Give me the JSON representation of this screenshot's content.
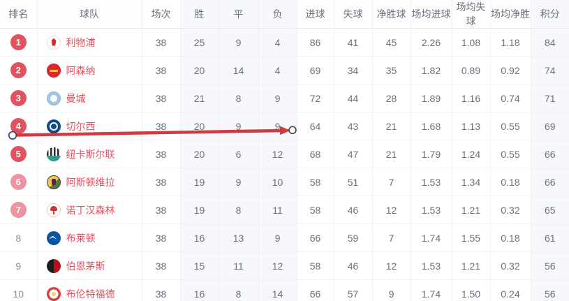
{
  "accent": {
    "badge_red": "#e4525f",
    "badge_pink": "#ee93a0",
    "team_text_red": "#e5505e"
  },
  "annotation": {
    "type": "arrow",
    "color": "#d23a41",
    "handle_border": "#2c4270",
    "description": "red arrow with drag handles drawn across row 4 (切尔西)"
  },
  "table": {
    "columns": [
      {
        "key": "rank",
        "label": "排名"
      },
      {
        "key": "team",
        "label": "球队"
      },
      {
        "key": "played",
        "label": "场次"
      },
      {
        "key": "win",
        "label": "胜"
      },
      {
        "key": "draw",
        "label": "平"
      },
      {
        "key": "loss",
        "label": "负"
      },
      {
        "key": "gf",
        "label": "进球"
      },
      {
        "key": "ga",
        "label": "失球"
      },
      {
        "key": "gd",
        "label": "净胜球"
      },
      {
        "key": "avg_gf",
        "label": "场均进球"
      },
      {
        "key": "avg_ga",
        "label": "场均失球"
      },
      {
        "key": "avg_gd",
        "label": "场均净胜"
      },
      {
        "key": "points",
        "label": "积分"
      }
    ],
    "rows": [
      {
        "rank": "1",
        "badge": "solid",
        "team": "利物浦",
        "logo_icon": "liverpool-logo-icon",
        "stats": [
          "38",
          "25",
          "9",
          "4",
          "86",
          "41",
          "45",
          "2.26",
          "1.08",
          "1.18",
          "84"
        ]
      },
      {
        "rank": "2",
        "badge": "solid",
        "team": "阿森纳",
        "logo_icon": "arsenal-logo-icon",
        "stats": [
          "38",
          "20",
          "14",
          "4",
          "69",
          "34",
          "35",
          "1.82",
          "0.89",
          "0.92",
          "74"
        ]
      },
      {
        "rank": "3",
        "badge": "solid",
        "team": "曼城",
        "logo_icon": "mancity-logo-icon",
        "stats": [
          "38",
          "21",
          "8",
          "9",
          "72",
          "44",
          "28",
          "1.89",
          "1.16",
          "0.74",
          "71"
        ]
      },
      {
        "rank": "4",
        "badge": "solid",
        "team": "切尔西",
        "logo_icon": "chelsea-logo-icon",
        "stats": [
          "38",
          "20",
          "9",
          "9",
          "64",
          "43",
          "21",
          "1.68",
          "1.13",
          "0.55",
          "69"
        ]
      },
      {
        "rank": "5",
        "badge": "solid",
        "team": "纽卡斯尔联",
        "logo_icon": "newcastle-logo-icon",
        "stats": [
          "38",
          "20",
          "6",
          "12",
          "68",
          "47",
          "21",
          "1.79",
          "1.24",
          "0.55",
          "66"
        ]
      },
      {
        "rank": "6",
        "badge": "light",
        "team": "阿斯顿维拉",
        "logo_icon": "villa-logo-icon",
        "stats": [
          "38",
          "19",
          "9",
          "10",
          "58",
          "51",
          "7",
          "1.53",
          "1.34",
          "0.18",
          "66"
        ]
      },
      {
        "rank": "7",
        "badge": "light",
        "team": "诺丁汉森林",
        "logo_icon": "forest-logo-icon",
        "stats": [
          "38",
          "19",
          "8",
          "11",
          "58",
          "46",
          "12",
          "1.53",
          "1.21",
          "0.32",
          "65"
        ]
      },
      {
        "rank": "8",
        "badge": "none",
        "team": "布莱顿",
        "logo_icon": "brighton-logo-icon",
        "stats": [
          "38",
          "16",
          "13",
          "9",
          "66",
          "59",
          "7",
          "1.74",
          "1.55",
          "0.18",
          "61"
        ]
      },
      {
        "rank": "9",
        "badge": "none",
        "team": "伯恩茅斯",
        "logo_icon": "bournemouth-logo-icon",
        "stats": [
          "38",
          "15",
          "11",
          "12",
          "58",
          "46",
          "12",
          "1.53",
          "1.21",
          "0.32",
          "56"
        ]
      },
      {
        "rank": "10",
        "badge": "none",
        "team": "布伦特福德",
        "logo_icon": "brentford-logo-icon",
        "stats": [
          "38",
          "16",
          "8",
          "14",
          "66",
          "57",
          "9",
          "1.74",
          "1.50",
          "0.24",
          "56"
        ]
      }
    ]
  }
}
